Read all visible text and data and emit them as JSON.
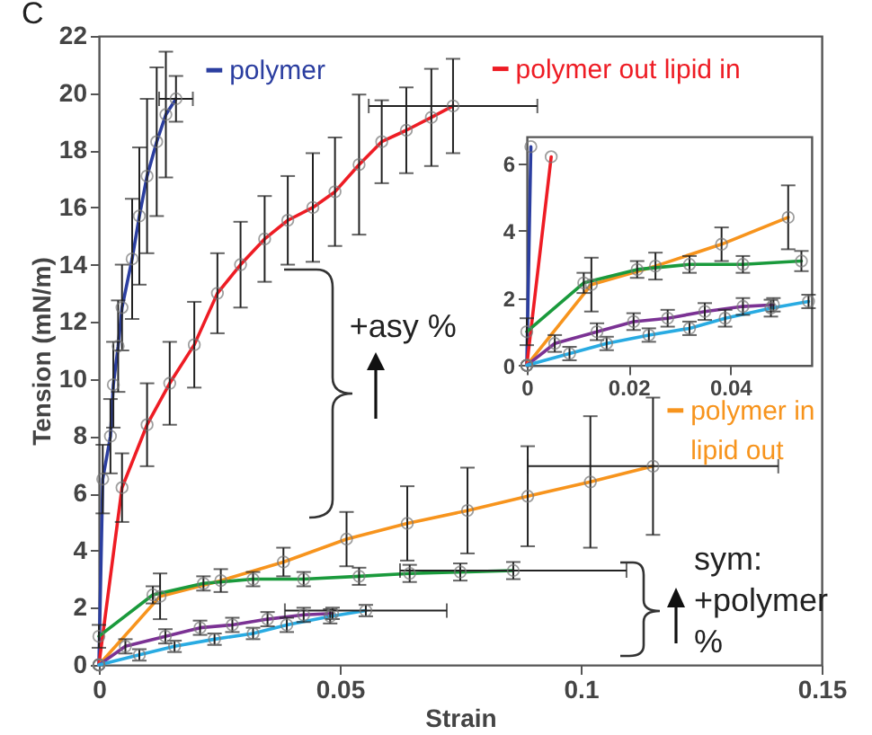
{
  "chart_data": [
    {
      "type": "line",
      "title": "C",
      "xlabel": "Strain",
      "ylabel": "Tension (mN/m)",
      "xlim": [
        0,
        0.15
      ],
      "ylim": [
        0,
        22
      ],
      "xticks": [
        0,
        0.05,
        0.1,
        0.15
      ],
      "yticks": [
        0,
        2,
        4,
        6,
        8,
        10,
        12,
        14,
        16,
        18,
        20,
        22
      ],
      "marker": "circle",
      "legend": "top",
      "annotations": [
        "+asy %",
        "sym: +polymer %"
      ],
      "series": [
        {
          "name": "polymer",
          "color": "#2b3ea0",
          "x": [
            0,
            0.0008,
            0.0024,
            0.003,
            0.004,
            0.0048,
            0.0069,
            0.0084,
            0.01,
            0.012,
            0.0139,
            0.016
          ],
          "values": [
            0,
            6.5,
            8,
            9.8,
            11.15,
            12.5,
            14.2,
            15.7,
            17.1,
            18.3,
            19.25,
            19.8
          ],
          "errors": [
            null,
            1.2,
            1.3,
            1.5,
            1.6,
            1.5,
            2.1,
            2.4,
            2.7,
            2.6,
            2.2,
            0.8
          ],
          "xerrors": [
            null,
            null,
            null,
            null,
            null,
            null,
            null,
            null,
            null,
            null,
            null,
            0.0035
          ]
        },
        {
          "name": "polymer out lipid in",
          "color": "#ee1c24",
          "x": [
            0,
            0.0048,
            0.01,
            0.0147,
            0.0198,
            0.0246,
            0.0294,
            0.0344,
            0.0392,
            0.0444,
            0.049,
            0.054,
            0.0587,
            0.0638,
            0.069,
            0.0735
          ],
          "values": [
            0,
            6.2,
            8.4,
            9.85,
            11.2,
            13.0,
            14.0,
            14.9,
            15.55,
            16.0,
            16.55,
            17.5,
            18.3,
            18.7,
            19.15,
            19.55
          ],
          "errors": [
            null,
            1.2,
            1.45,
            1.45,
            1.5,
            1.4,
            1.5,
            1.5,
            1.55,
            1.9,
            1.9,
            2.45,
            1.45,
            1.5,
            1.7,
            1.65
          ],
          "xerrors": [
            null,
            null,
            null,
            null,
            null,
            null,
            null,
            null,
            null,
            null,
            null,
            null,
            null,
            null,
            null,
            0.0175
          ]
        },
        {
          "name": "polymer in lipid out",
          "color": "#f7941d",
          "x": [
            0,
            0.0127,
            0.0253,
            0.0383,
            0.0514,
            0.064,
            0.0765,
            0.089,
            0.102,
            0.115
          ],
          "values": [
            0,
            2.4,
            2.95,
            3.6,
            4.4,
            4.95,
            5.4,
            5.9,
            6.4,
            6.95
          ],
          "errors": [
            null,
            0.8,
            0.4,
            0.5,
            0.95,
            1.3,
            1.5,
            1.75,
            2.3,
            2.4
          ],
          "xerrors": [
            null,
            null,
            null,
            null,
            null,
            null,
            null,
            null,
            null,
            0.026
          ]
        },
        {
          "color": "#1a9a3c",
          "x": [
            0,
            0.0112,
            0.0217,
            0.032,
            0.0425,
            0.054,
            0.0645,
            0.075,
            0.086
          ],
          "values": [
            1.0,
            2.45,
            2.85,
            3.0,
            3.0,
            3.1,
            3.2,
            3.25,
            3.3
          ],
          "errors": [
            0.4,
            0.3,
            0.25,
            0.25,
            0.25,
            0.3,
            0.3,
            0.3,
            0.3
          ],
          "xerrors": [
            null,
            null,
            null,
            null,
            null,
            null,
            null,
            null,
            0.0235
          ]
        },
        {
          "color": "#7b3294",
          "x": [
            0,
            0.0055,
            0.0138,
            0.021,
            0.0277,
            0.035,
            0.0425,
            0.0485
          ],
          "values": [
            0,
            0.65,
            1.0,
            1.3,
            1.4,
            1.6,
            1.75,
            1.8
          ],
          "errors": [
            null,
            0.25,
            0.25,
            0.25,
            0.25,
            0.25,
            0.25,
            0.2
          ]
        },
        {
          "color": "#29abe2",
          "x": [
            0,
            0.0084,
            0.0157,
            0.024,
            0.032,
            0.039,
            0.048,
            0.0554
          ],
          "values": [
            0,
            0.35,
            0.65,
            0.9,
            1.1,
            1.4,
            1.7,
            1.9
          ],
          "errors": [
            null,
            0.2,
            0.2,
            0.2,
            0.2,
            0.25,
            0.25,
            0.2
          ],
          "xerrors": [
            null,
            null,
            null,
            null,
            null,
            null,
            null,
            0.0168
          ]
        }
      ]
    },
    {
      "type": "line",
      "xlim": [
        0,
        0.056
      ],
      "ylim": [
        0,
        6.8
      ],
      "xticks": [
        0,
        0.02,
        0.04
      ],
      "yticks": [
        0,
        2,
        4,
        6
      ],
      "marker": "circle",
      "series": [
        {
          "color": "#2b3ea0",
          "x": [
            0,
            0.0008
          ],
          "values": [
            0,
            6.5
          ]
        },
        {
          "color": "#ee1c24",
          "x": [
            0,
            0.0048
          ],
          "values": [
            0,
            6.2
          ]
        },
        {
          "color": "#f7941d",
          "x": [
            0,
            0.0127,
            0.0253,
            0.0383,
            0.0514
          ],
          "values": [
            0,
            2.4,
            2.95,
            3.6,
            4.4
          ],
          "errors": [
            null,
            0.8,
            0.4,
            0.5,
            0.95
          ]
        },
        {
          "color": "#1a9a3c",
          "x": [
            0,
            0.0112,
            0.0217,
            0.032,
            0.0425,
            0.054
          ],
          "values": [
            1.0,
            2.45,
            2.85,
            3.0,
            3.0,
            3.1
          ],
          "errors": [
            0.4,
            0.3,
            0.25,
            0.25,
            0.25,
            0.3
          ]
        },
        {
          "color": "#7b3294",
          "x": [
            0,
            0.0055,
            0.0138,
            0.021,
            0.0277,
            0.035,
            0.0425,
            0.0485
          ],
          "values": [
            0,
            0.65,
            1.0,
            1.3,
            1.4,
            1.6,
            1.75,
            1.8
          ],
          "errors": [
            null,
            0.25,
            0.25,
            0.25,
            0.25,
            0.25,
            0.25,
            0.2
          ]
        },
        {
          "color": "#29abe2",
          "x": [
            0,
            0.0084,
            0.0157,
            0.024,
            0.032,
            0.039,
            0.048,
            0.0554
          ],
          "values": [
            0,
            0.35,
            0.65,
            0.9,
            1.1,
            1.4,
            1.7,
            1.9
          ],
          "errors": [
            null,
            0.2,
            0.2,
            0.2,
            0.2,
            0.25,
            0.25,
            0.2
          ]
        }
      ]
    }
  ]
}
